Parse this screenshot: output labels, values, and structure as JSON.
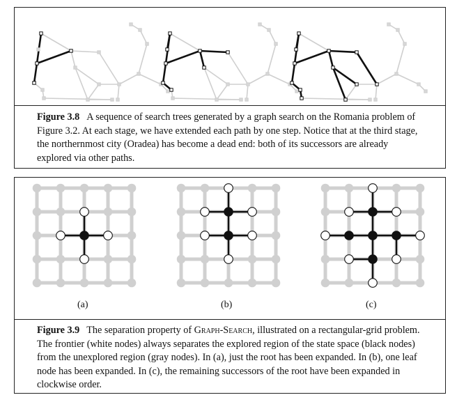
{
  "figure_3_8": {
    "label": "Figure 3.8",
    "caption": "A sequence of search trees generated by a graph search on the Romania problem of Figure 3.2. At each stage, we have extended each path by one step. Notice that at the third stage, the northernmost city (Oradea) has become a dead end: both of its successors are already explored via other paths."
  },
  "figure_3_9": {
    "label": "Figure 3.9",
    "caption_before": "The separation property of ",
    "caption_term": "Graph-Search",
    "caption_after": ", illustrated on a rectangular-grid problem. The frontier (white nodes) always separates the explored region of the state space (black nodes) from the unexplored region (gray nodes). In (a), just the root has been expanded. In (b), one leaf node has been expanded. In (c), the remaining successors of the root have been expanded in clockwise order.",
    "panel_labels": [
      "(a)",
      "(b)",
      "(c)"
    ]
  },
  "colors": {
    "explored": "#111111",
    "frontier": "#ffffff",
    "unexplored": "#d0d0d0",
    "border": "#222222"
  }
}
